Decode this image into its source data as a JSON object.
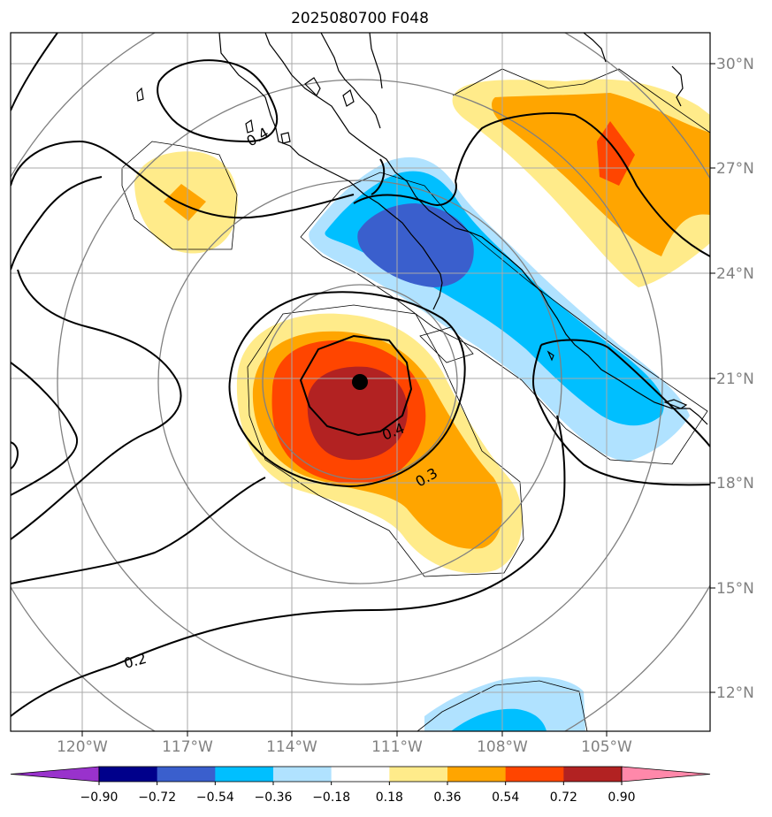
{
  "title": "2025080700 F048",
  "lat_labels": [
    "30°N",
    "27°N",
    "24°N",
    "21°N",
    "18°N",
    "15°N",
    "12°N"
  ],
  "lon_labels": [
    "120°W",
    "117°W",
    "114°W",
    "111°W",
    "108°W",
    "105°W"
  ],
  "contour_labels": [
    "0.4",
    "0.4",
    "0.3",
    "0.2"
  ],
  "colorbar": {
    "colors": [
      "#9932cc",
      "#00008b",
      "#3a5fcd",
      "#00bfff",
      "#b0e2ff",
      "#ffffff",
      "#ffeb8a",
      "#ffa500",
      "#ff4500",
      "#b22222",
      "#ff88aa"
    ],
    "ticks": [
      "−0.90",
      "−0.72",
      "−0.54",
      "−0.36",
      "−0.18",
      "0.18",
      "0.36",
      "0.54",
      "0.72",
      "0.90"
    ]
  },
  "storm_marker": {
    "lat": 20.9,
    "lon": -112.2
  }
}
